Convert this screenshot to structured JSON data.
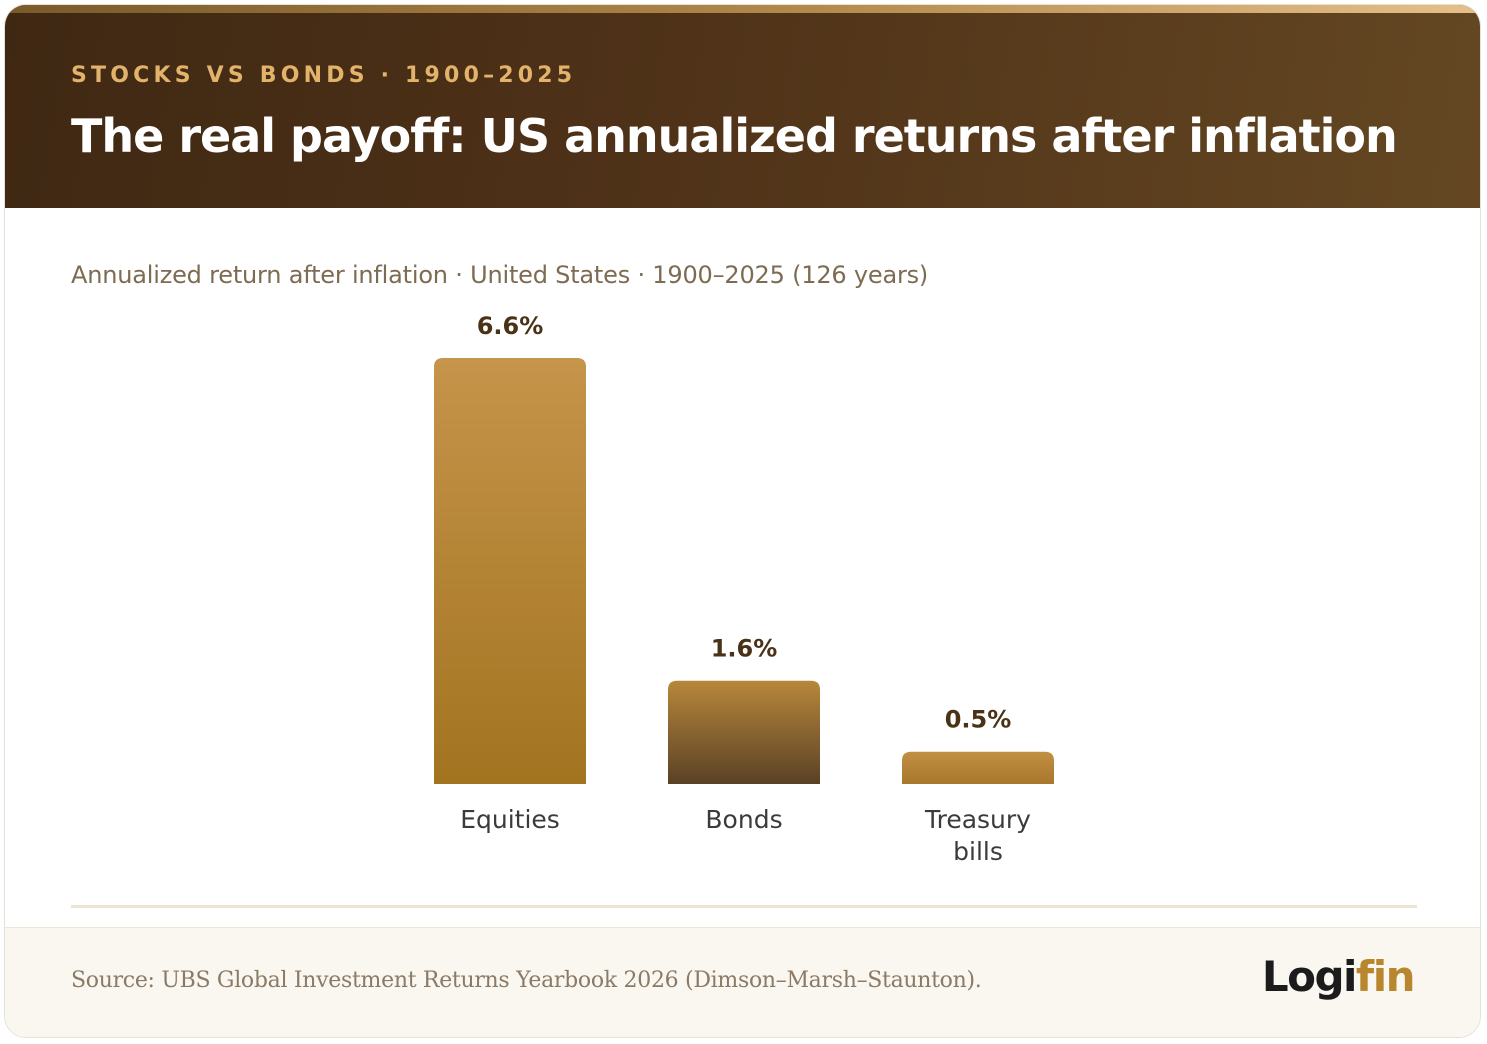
{
  "header": {
    "eyebrow": "STOCKS VS BONDS · 1900–2025",
    "title": "The real payoff: US annualized returns after inflation"
  },
  "subtitle": "Annualized return after inflation · United States · 1900–2025 (126 years)",
  "footer": {
    "source": "Source: UBS Global Investment Returns Yearbook 2026 (Dimson–Marsh–Staunton).",
    "logo": {
      "part1": "Logi",
      "part2": "fin"
    }
  },
  "colors": {
    "header_bg": "#4a2f16",
    "eyebrow": "#e3b36b",
    "bar_gold": "#b7872f",
    "bar_brown": "#5e4322",
    "value_label": "#4a3216",
    "category_label": "#3b3b3b",
    "logo_accent": "#b8862f"
  },
  "chart_data": {
    "type": "bar",
    "title": "",
    "xlabel": "",
    "ylabel": "",
    "categories": [
      "Equities",
      "Bonds",
      "Treasury bills"
    ],
    "category_lines": [
      [
        "Equities"
      ],
      [
        "Bonds"
      ],
      [
        "Treasury",
        "bills"
      ]
    ],
    "values": [
      6.6,
      1.6,
      0.5
    ],
    "value_labels": [
      "6.6%",
      "1.6%",
      "0.5%"
    ],
    "unit": "%",
    "ylim": [
      0,
      6.6
    ],
    "grid": false,
    "legend": "none"
  }
}
